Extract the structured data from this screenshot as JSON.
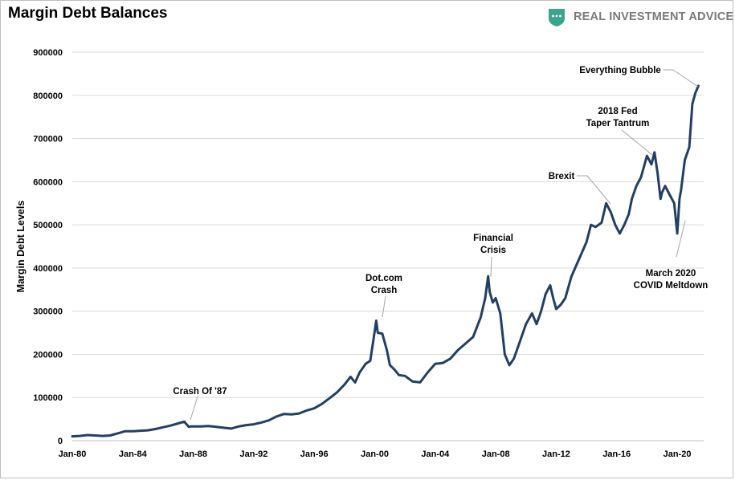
{
  "header": {
    "title": "Margin Debt Balances",
    "brand": "REAL INVESTMENT ADVICE"
  },
  "colors": {
    "line": "#233f63",
    "grid": "#d9d9d9",
    "brand_icon": "#3aa58c",
    "annotation_leader": "#a6a6a6"
  },
  "chart_data": {
    "type": "line",
    "title": "Margin Debt Balances",
    "xlabel": "",
    "ylabel": "Margin Debt Levels",
    "ylim": [
      0,
      900000
    ],
    "yticks": [
      0,
      100000,
      200000,
      300000,
      400000,
      500000,
      600000,
      700000,
      800000,
      900000
    ],
    "ytick_labels": [
      "0",
      "100000",
      "200000",
      "300000",
      "400000",
      "500000",
      "600000",
      "700000",
      "800000",
      "900000"
    ],
    "xlim": [
      1980.0,
      2021.75
    ],
    "xticks": [
      1980,
      1984,
      1988,
      1992,
      1996,
      2000,
      2004,
      2008,
      2012,
      2016,
      2020
    ],
    "xtick_labels": [
      "Jan-80",
      "Jan-84",
      "Jan-88",
      "Jan-92",
      "Jan-96",
      "Jan-00",
      "Jan-04",
      "Jan-08",
      "Jan-12",
      "Jan-16",
      "Jan-20"
    ],
    "grid": "horizontal",
    "series": [
      {
        "name": "",
        "x": [
          1980.0,
          1980.5,
          1981.0,
          1981.5,
          1982.0,
          1982.5,
          1983.0,
          1983.5,
          1984.0,
          1984.5,
          1985.0,
          1985.5,
          1986.0,
          1986.5,
          1987.0,
          1987.4,
          1987.7,
          1987.85,
          1988.0,
          1988.5,
          1989.0,
          1989.5,
          1990.0,
          1990.5,
          1991.0,
          1991.5,
          1992.0,
          1992.5,
          1993.0,
          1993.5,
          1994.0,
          1994.5,
          1995.0,
          1995.5,
          1996.0,
          1996.5,
          1997.0,
          1997.5,
          1998.0,
          1998.4,
          1998.7,
          1999.0,
          1999.4,
          1999.7,
          1999.9,
          2000.1,
          2000.2,
          2000.5,
          2000.8,
          2001.0,
          2001.3,
          2001.6,
          2002.0,
          2002.5,
          2003.0,
          2003.5,
          2004.0,
          2004.5,
          2005.0,
          2005.5,
          2006.0,
          2006.5,
          2007.0,
          2007.3,
          2007.5,
          2007.6,
          2007.8,
          2008.0,
          2008.3,
          2008.6,
          2008.9,
          2009.0,
          2009.2,
          2009.5,
          2010.0,
          2010.4,
          2010.7,
          2011.0,
          2011.3,
          2011.6,
          2011.8,
          2012.0,
          2012.3,
          2012.6,
          2013.0,
          2013.5,
          2014.0,
          2014.3,
          2014.6,
          2015.0,
          2015.3,
          2015.6,
          2015.9,
          2016.2,
          2016.5,
          2016.8,
          2017.0,
          2017.3,
          2017.6,
          2018.0,
          2018.3,
          2018.5,
          2018.7,
          2018.9,
          2019.0,
          2019.2,
          2019.5,
          2019.8,
          2020.0,
          2020.15,
          2020.25,
          2020.5,
          2020.8,
          2021.0,
          2021.2,
          2021.4
        ],
        "y": [
          10000,
          11000,
          13000,
          12000,
          11000,
          12000,
          17000,
          22000,
          22000,
          23000,
          24000,
          27000,
          31000,
          35000,
          40000,
          44000,
          32000,
          33000,
          33000,
          33000,
          34000,
          32000,
          30000,
          28000,
          33000,
          36000,
          38000,
          42000,
          47000,
          56000,
          62000,
          61000,
          63000,
          70000,
          75000,
          85000,
          98000,
          112000,
          130000,
          148000,
          135000,
          158000,
          178000,
          185000,
          230000,
          278000,
          250000,
          248000,
          210000,
          175000,
          165000,
          152000,
          150000,
          137000,
          135000,
          158000,
          178000,
          180000,
          190000,
          210000,
          225000,
          240000,
          285000,
          330000,
          381000,
          345000,
          320000,
          330000,
          295000,
          200000,
          175000,
          180000,
          190000,
          220000,
          270000,
          295000,
          270000,
          300000,
          340000,
          360000,
          330000,
          305000,
          315000,
          330000,
          380000,
          420000,
          460000,
          500000,
          495000,
          505000,
          550000,
          530000,
          500000,
          480000,
          500000,
          525000,
          560000,
          590000,
          610000,
          660000,
          640000,
          668000,
          620000,
          560000,
          575000,
          590000,
          570000,
          550000,
          480000,
          560000,
          580000,
          650000,
          680000,
          780000,
          805000,
          822000
        ]
      }
    ],
    "annotations": [
      {
        "id": "crash87",
        "lines": [
          "Crash Of '87"
        ]
      },
      {
        "id": "dotcom",
        "lines": [
          "Dot.com",
          "Crash"
        ]
      },
      {
        "id": "financial",
        "lines": [
          "Financial",
          "Crisis"
        ]
      },
      {
        "id": "brexit",
        "lines": [
          "Brexit"
        ]
      },
      {
        "id": "fed2018",
        "lines": [
          "2018 Fed",
          "Taper Tantrum"
        ]
      },
      {
        "id": "everything",
        "lines": [
          "Everything Bubble"
        ]
      },
      {
        "id": "covid",
        "lines": [
          "March 2020",
          "COVID Meltdown"
        ]
      }
    ]
  }
}
